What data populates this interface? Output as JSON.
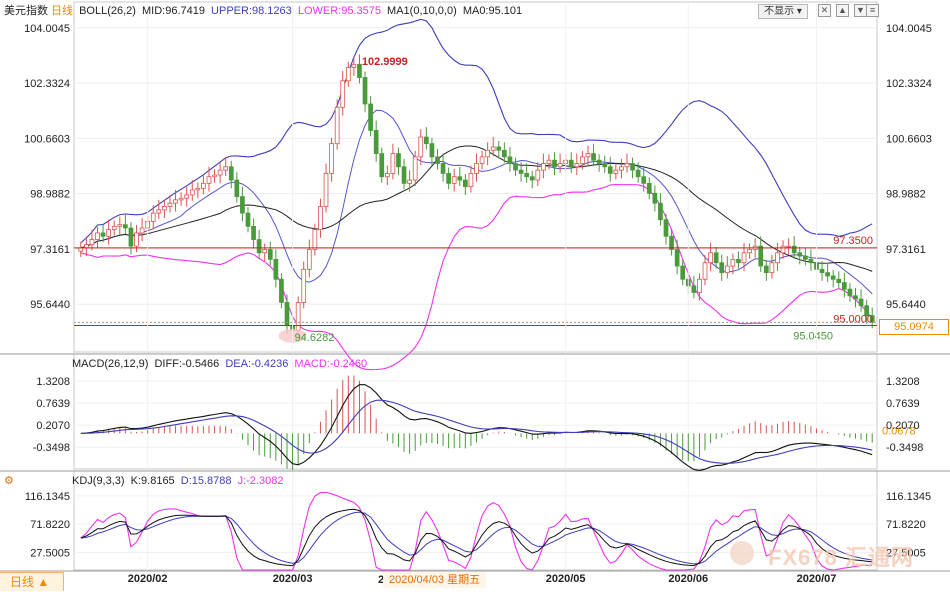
{
  "main_panel": {
    "title": "美元指数",
    "period": "日线",
    "boll_label": "BOLL(26,2)",
    "mid": "MID:96.7419",
    "upper": "UPPER:98.1263",
    "lower": "LOWER:95.3575",
    "ma_label": "MA1(0,10,0,0)",
    "ma0": "MA0:95.101",
    "hide_button": "不显示",
    "annotations": {
      "high": "102.9999",
      "low": "94.6282",
      "level_high": "97.3500",
      "level_low": "95.0000",
      "last_low": "95.0450"
    },
    "current_price": "95.0974"
  },
  "macd_panel": {
    "title": "MACD(26,12,9)",
    "diff": "DIFF:-0.5466",
    "dea": "DEA:-0.4236",
    "macd": "MACD:-0.2460",
    "current_value": "0.0678"
  },
  "kdj_panel": {
    "title": "KDJ(9,3,3)",
    "k": "K:9.8165",
    "d": "D:15.8788",
    "j": "J:-2.3082"
  },
  "footer": {
    "period_tab": "日线 ▲",
    "tooltip_date": "2020/04/03 星期五",
    "tooltip_prefix": "2"
  },
  "watermark": "FX678 汇通网",
  "colors": {
    "up": "#d9534f",
    "down": "#4a9a3c",
    "boll_upper": "#3d3dbb",
    "boll_lower": "#ee33ee",
    "boll_mid": "#222222",
    "level": "#cc2020",
    "diff": "#111111",
    "dea": "#3d3dbb",
    "j": "#ee33ee",
    "accent": "#f08a00"
  },
  "chart_data": [
    {
      "type": "candlestick",
      "title": "美元指数 日线",
      "x_ticks": [
        "2020/02",
        "2020/03",
        "2020/05",
        "2020/06",
        "2020/07"
      ],
      "y_ticks": [
        "104.0045",
        "102.3324",
        "100.6603",
        "98.9882",
        "97.3161",
        "95.6440"
      ],
      "ylim": [
        94.2,
        104.3
      ],
      "closes": [
        97.35,
        97.45,
        97.6,
        97.8,
        97.7,
        97.9,
        98.0,
        98.05,
        97.95,
        97.4,
        97.8,
        97.95,
        98.15,
        98.4,
        98.5,
        98.6,
        98.7,
        98.8,
        98.85,
        98.95,
        99.1,
        99.15,
        99.3,
        99.5,
        99.55,
        99.7,
        99.8,
        99.4,
        98.9,
        98.4,
        98.0,
        97.6,
        97.2,
        97.3,
        97.0,
        96.4,
        95.7,
        95.0,
        94.85,
        95.7,
        96.7,
        97.3,
        97.9,
        98.6,
        99.6,
        100.5,
        101.6,
        102.4,
        102.8,
        102.9,
        102.5,
        101.7,
        100.9,
        100.2,
        99.5,
        99.6,
        100.2,
        99.8,
        99.3,
        99.4,
        100.1,
        100.7,
        100.5,
        100.1,
        99.9,
        99.6,
        99.3,
        99.5,
        99.4,
        99.2,
        99.6,
        99.9,
        100.1,
        100.3,
        100.4,
        100.3,
        100.1,
        99.9,
        99.7,
        99.6,
        99.5,
        99.4,
        99.7,
        99.9,
        100.0,
        99.8,
        99.9,
        100.0,
        99.8,
        99.9,
        100.1,
        100.2,
        100.0,
        99.9,
        99.8,
        99.6,
        99.7,
        99.8,
        99.9,
        99.7,
        99.5,
        99.3,
        99.0,
        98.7,
        98.2,
        97.7,
        97.3,
        96.8,
        96.4,
        96.2,
        96.0,
        96.4,
        96.9,
        97.2,
        96.9,
        96.6,
        96.8,
        97.0,
        96.9,
        97.2,
        97.3,
        97.4,
        96.8,
        96.6,
        96.9,
        97.2,
        97.4,
        97.4,
        97.2,
        97.1,
        97.0,
        96.9,
        96.7,
        96.6,
        96.5,
        96.4,
        96.3,
        96.1,
        95.9,
        95.8,
        95.6,
        95.3,
        95.1
      ]
    },
    {
      "type": "line",
      "title": "MACD(26,12,9)",
      "y_ticks": [
        "1.3208",
        "0.7639",
        "0.2070",
        "-0.3498"
      ],
      "ylim": [
        -0.9,
        1.6
      ]
    },
    {
      "type": "line",
      "title": "KDJ(9,3,3)",
      "y_ticks": [
        "116.1345",
        "71.8220",
        "27.5005"
      ],
      "ylim": [
        0,
        130
      ]
    }
  ]
}
